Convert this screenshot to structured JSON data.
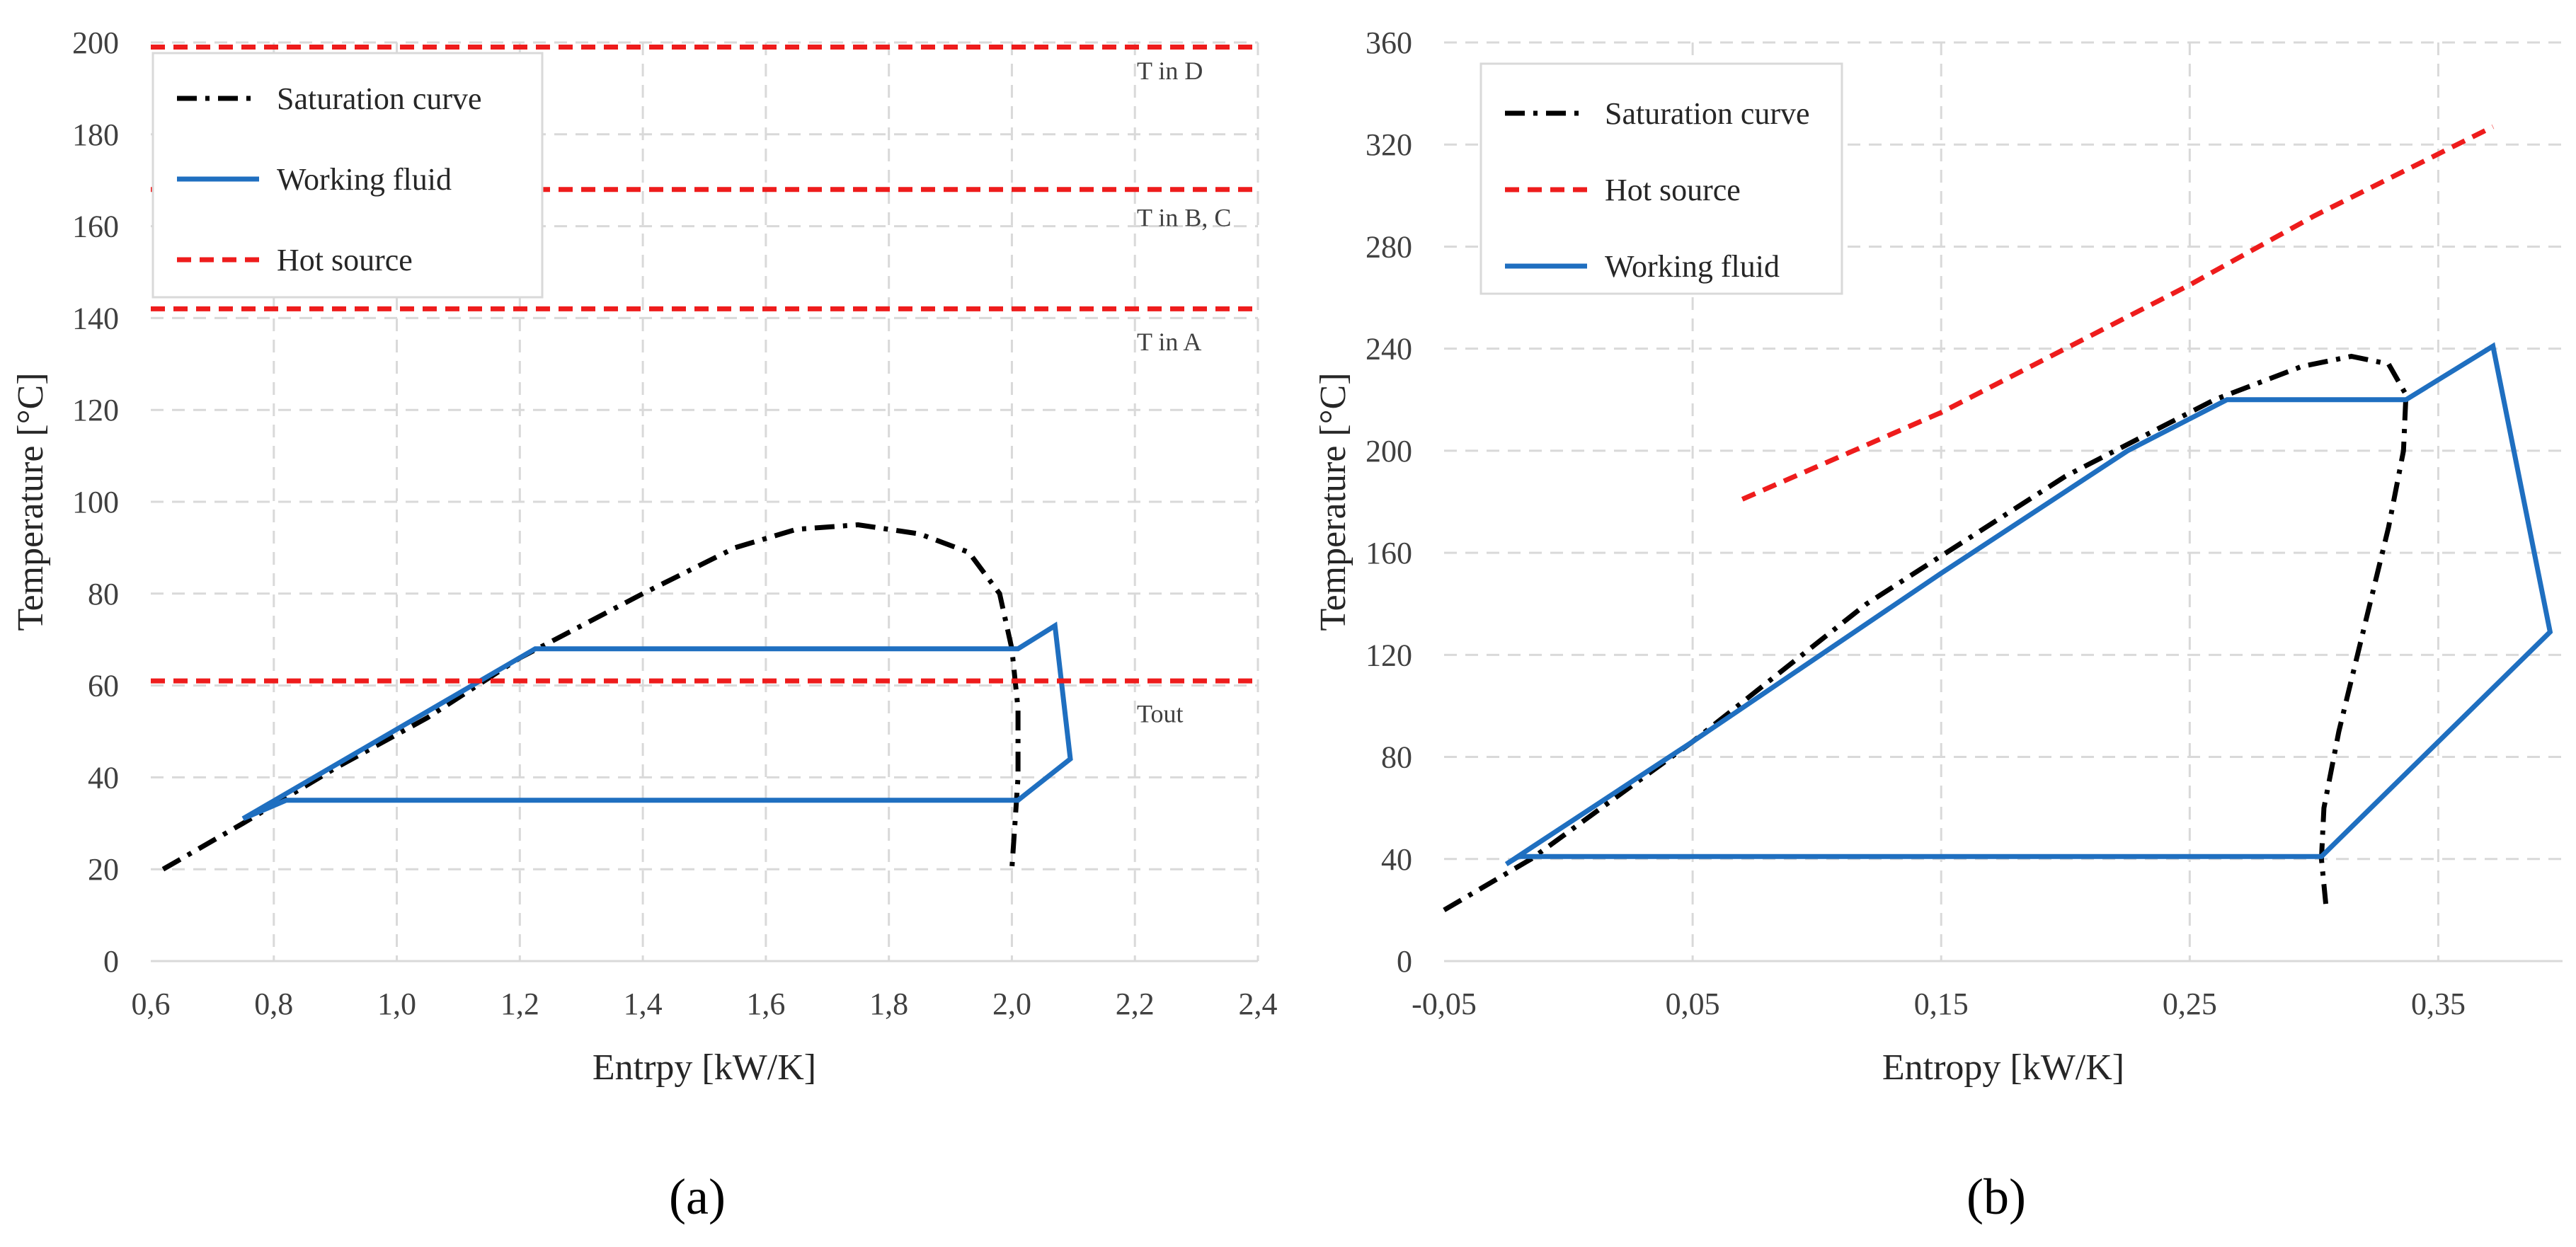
{
  "chart_data": [
    {
      "type": "line",
      "panel_label": "(a)",
      "xlabel": "Entrpy [kW/K]",
      "ylabel": "Temperature [°C]",
      "xlim": [
        0.6,
        2.4
      ],
      "ylim": [
        0,
        200
      ],
      "xticks": [
        0.6,
        0.8,
        1.0,
        1.2,
        1.4,
        1.6,
        1.8,
        2.0,
        2.2,
        2.4
      ],
      "xtick_labels": [
        "0,6",
        "0,8",
        "1,0",
        "1,2",
        "1,4",
        "1,6",
        "1,8",
        "2,0",
        "2,2",
        "2,4"
      ],
      "yticks": [
        0,
        20,
        40,
        60,
        80,
        100,
        120,
        140,
        160,
        180,
        200
      ],
      "ytick_labels": [
        "0",
        "20",
        "40",
        "60",
        "80",
        "100",
        "120",
        "140",
        "160",
        "180",
        "200"
      ],
      "grid": true,
      "legend_position": "top-left",
      "legend": [
        "Saturation curve",
        "Working fluid",
        "Hot source"
      ],
      "series": [
        {
          "name": "Saturation curve",
          "style": "dash-dot",
          "color": "#000000",
          "x": [
            0.62,
            0.75,
            0.9,
            1.05,
            1.2,
            1.4,
            1.55,
            1.65,
            1.75,
            1.85,
            1.93,
            1.98,
            2.0,
            2.01,
            2.01,
            2.005,
            2.0
          ],
          "y": [
            20,
            30,
            42,
            53,
            66,
            80,
            90,
            94,
            95,
            93,
            89,
            80,
            68,
            55,
            40,
            30,
            20
          ]
        },
        {
          "name": "Working fluid",
          "style": "solid",
          "color": "#1f6fc0",
          "x": [
            0.75,
            1.225,
            2.01,
            2.07,
            2.095,
            2.01,
            0.82,
            0.75
          ],
          "y": [
            31,
            68,
            68,
            73,
            44,
            35,
            35,
            31
          ]
        },
        {
          "name": "Hot source",
          "style": "dashed",
          "color": "#ee1c1c",
          "x": [
            0.6,
            2.4
          ],
          "y": [
            199,
            199
          ]
        },
        {
          "name": "Hot source",
          "style": "dashed",
          "color": "#ee1c1c",
          "x": [
            0.6,
            2.4
          ],
          "y": [
            168,
            168
          ]
        },
        {
          "name": "Hot source",
          "style": "dashed",
          "color": "#ee1c1c",
          "x": [
            0.6,
            2.4
          ],
          "y": [
            142,
            142
          ]
        },
        {
          "name": "Hot source",
          "style": "dashed",
          "color": "#ee1c1c",
          "x": [
            0.6,
            2.4
          ],
          "y": [
            61,
            61
          ]
        }
      ],
      "annotations": [
        {
          "text": "T in D",
          "x": 2.13,
          "y": 192
        },
        {
          "text": "T in B, C",
          "x": 2.13,
          "y": 160
        },
        {
          "text": "T in A",
          "x": 2.13,
          "y": 133
        },
        {
          "text": "Tout",
          "x": 2.13,
          "y": 52
        }
      ]
    },
    {
      "type": "line",
      "panel_label": "(b)",
      "xlabel": "Entropy [kW/K]",
      "ylabel": "Temperature [°C]",
      "xlim": [
        -0.05,
        0.4
      ],
      "ylim": [
        0,
        360
      ],
      "xticks": [
        -0.05,
        0.05,
        0.15,
        0.25,
        0.35
      ],
      "xtick_labels": [
        "-0,05",
        "0,05",
        "0,15",
        "0,25",
        "0,35"
      ],
      "yticks": [
        0,
        40,
        80,
        120,
        160,
        200,
        240,
        280,
        320,
        360
      ],
      "ytick_labels": [
        "0",
        "40",
        "80",
        "120",
        "160",
        "200",
        "240",
        "280",
        "320",
        "360"
      ],
      "grid": true,
      "legend_position": "top-left",
      "legend": [
        "Saturation curve",
        "Hot source",
        "Working fluid"
      ],
      "series": [
        {
          "name": "Saturation curve",
          "style": "dash-dot",
          "color": "#000000",
          "x": [
            -0.05,
            -0.015,
            0.05,
            0.12,
            0.2,
            0.26,
            0.295,
            0.315,
            0.33,
            0.337,
            0.336,
            0.33,
            0.32,
            0.31,
            0.304,
            0.303,
            0.305
          ],
          "y": [
            20,
            40,
            86,
            140,
            190,
            220,
            233,
            237,
            234,
            222,
            200,
            170,
            130,
            90,
            60,
            40,
            20
          ]
        },
        {
          "name": "Hot source",
          "style": "dashed",
          "color": "#ee1c1c",
          "x": [
            0.07,
            0.15,
            0.25,
            0.3,
            0.372
          ],
          "y": [
            181,
            215,
            265,
            292,
            327
          ]
        },
        {
          "name": "Working fluid",
          "style": "solid",
          "color": "#1f6fc0",
          "x": [
            -0.025,
            0.05,
            0.15,
            0.225,
            0.265,
            0.337,
            0.372,
            0.395,
            0.303,
            -0.02,
            -0.025
          ],
          "y": [
            38,
            86,
            152,
            200,
            220,
            220,
            241,
            129,
            41,
            41,
            38
          ]
        }
      ]
    }
  ]
}
